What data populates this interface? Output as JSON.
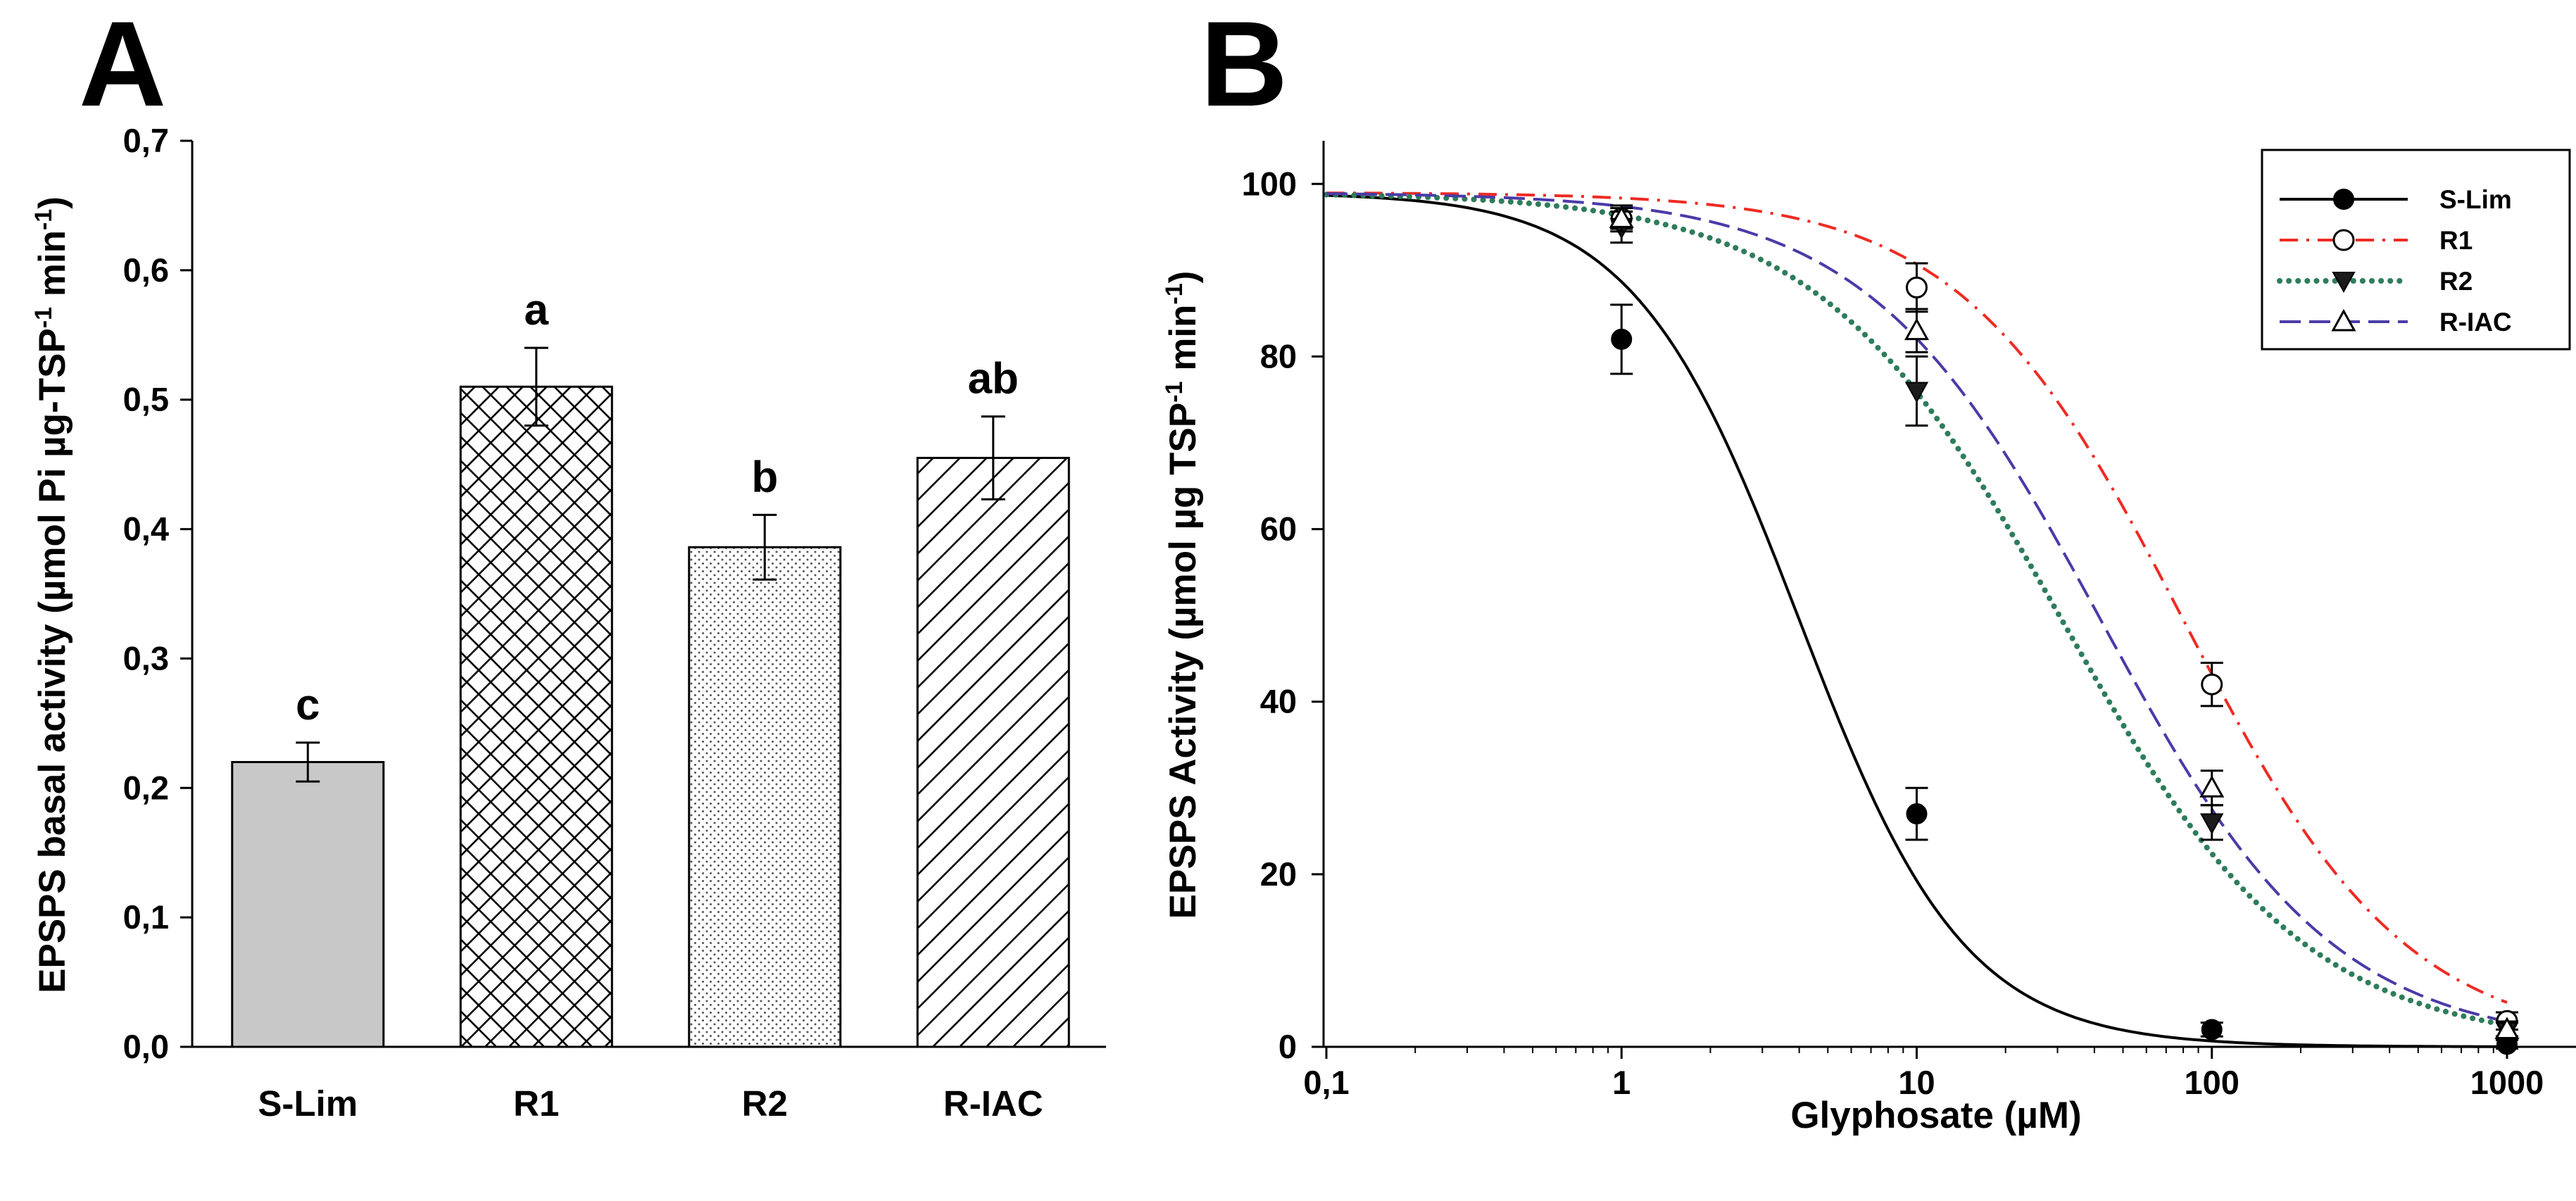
{
  "panels": {
    "a_letter": "A",
    "b_letter": "B"
  },
  "chart_data": [
    {
      "id": "A",
      "type": "bar",
      "title": "",
      "categories": [
        "S-Lim",
        "R1",
        "R2",
        "R-IAC"
      ],
      "values": [
        0.22,
        0.51,
        0.386,
        0.455
      ],
      "errors": [
        0.015,
        0.03,
        0.025,
        0.032
      ],
      "letters": [
        "c",
        "a",
        "b",
        "ab"
      ],
      "patterns": [
        "solid-gray",
        "crosshatch",
        "dots",
        "diagonal"
      ],
      "ylabel": "EPSPS basal activity (µmol Pi µg-TSP",
      "ylabel_sup1": "-1",
      "ylabel_mid": " min",
      "ylabel_sup2": "-1",
      "ylabel_end": ")",
      "xlabel": "",
      "ylim": [
        0,
        0.7
      ],
      "yticks": [
        0,
        0.1,
        0.2,
        0.3,
        0.4,
        0.5,
        0.6,
        0.7
      ],
      "ytick_labels": [
        "0,0",
        "0,1",
        "0,2",
        "0,3",
        "0,4",
        "0,5",
        "0,6",
        "0,7"
      ],
      "colors": {
        "fill_gray": "#c8c8c8",
        "ink": "#000000"
      }
    },
    {
      "id": "B",
      "type": "line",
      "title": "",
      "xscale": "log",
      "xlim": [
        0.1,
        1000
      ],
      "ylim": [
        0,
        105
      ],
      "xticks": [
        0.1,
        1,
        10,
        100,
        1000
      ],
      "xtick_labels": [
        "0,1",
        "1",
        "10",
        "100",
        "1000"
      ],
      "yticks": [
        0,
        20,
        40,
        60,
        80,
        100
      ],
      "ytick_labels": [
        "0",
        "20",
        "40",
        "60",
        "80",
        "100"
      ],
      "xlabel": "Glyphosate (µM)",
      "ylabel": "EPSPS Activity (µmol µg  TSP",
      "ylabel_sup1": "-1",
      "ylabel_mid": " min",
      "ylabel_sup2": "-1",
      "ylabel_end": ")",
      "legend_position": "top-right",
      "series": [
        {
          "name": "S-Lim",
          "color": "#000000",
          "linestyle": "solid",
          "marker": "filled-circle",
          "x": [
            1,
            10,
            100,
            1000
          ],
          "y": [
            82,
            27,
            2,
            0.3
          ],
          "err": [
            4,
            3,
            0.8,
            0.5
          ],
          "fit": {
            "top": 99,
            "ic50": 4.0,
            "hill": 1.55
          }
        },
        {
          "name": "R1",
          "color": "#ee2b24",
          "linestyle": "dash-dot",
          "marker": "open-circle",
          "x": [
            1,
            10,
            100,
            1000
          ],
          "y": [
            96,
            88,
            42,
            3
          ],
          "err": [
            1.2,
            2.8,
            2.5,
            1.0
          ],
          "fit": {
            "top": 99,
            "ic50": 80,
            "hill": 1.15
          }
        },
        {
          "name": "R2",
          "color": "#2e7d5b",
          "linestyle": "dotted",
          "marker": "filled-triangle-down",
          "x": [
            1,
            10,
            100,
            1000
          ],
          "y": [
            95,
            76,
            26,
            2
          ],
          "err": [
            1.8,
            4,
            2,
            0.8
          ],
          "fit": {
            "top": 99,
            "ic50": 31,
            "hill": 1.05
          }
        },
        {
          "name": "R-IAC",
          "color": "#4a3ba8",
          "linestyle": "long-dash",
          "marker": "open-triangle-up",
          "x": [
            1,
            10,
            100,
            1000
          ],
          "y": [
            96,
            83,
            30,
            2
          ],
          "err": [
            1.5,
            2.5,
            2,
            0.8
          ],
          "fit": {
            "top": 99,
            "ic50": 42,
            "hill": 1.1
          }
        }
      ]
    }
  ]
}
